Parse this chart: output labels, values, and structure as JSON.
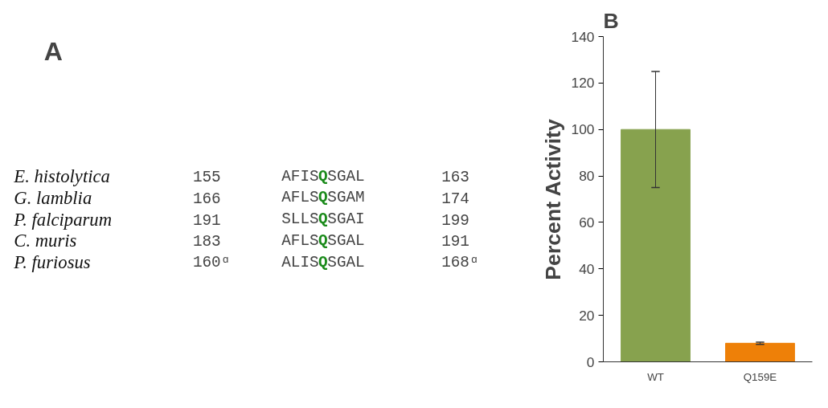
{
  "chart_data": [
    {
      "type": "other",
      "title": "A",
      "annotations": [
        "E. histolytica",
        "155",
        "AFISQSGAL",
        "163",
        "G. lamblia",
        "166",
        "AFLSQSGAM",
        "174",
        "P. falciparum",
        "191",
        "SLLSQSGAI",
        "199",
        "C. muris",
        "183",
        "AFLSQSGAL",
        "191",
        "P. furiosus",
        "160ᵅ",
        "ALISQSGAL",
        "168ᵅ"
      ]
    },
    {
      "type": "bar",
      "title": "B",
      "ylabel": "Percent Activity",
      "categories": [
        "WT",
        "Q159E"
      ],
      "values": [
        100,
        8
      ],
      "colors": [
        "#87a24e",
        "#ee8008"
      ],
      "errors": [
        25,
        0.5
      ],
      "ylim": [
        0,
        140
      ],
      "yticks": [
        0,
        20,
        40,
        60,
        80,
        100,
        120,
        140
      ],
      "grid": false
    }
  ]
}
